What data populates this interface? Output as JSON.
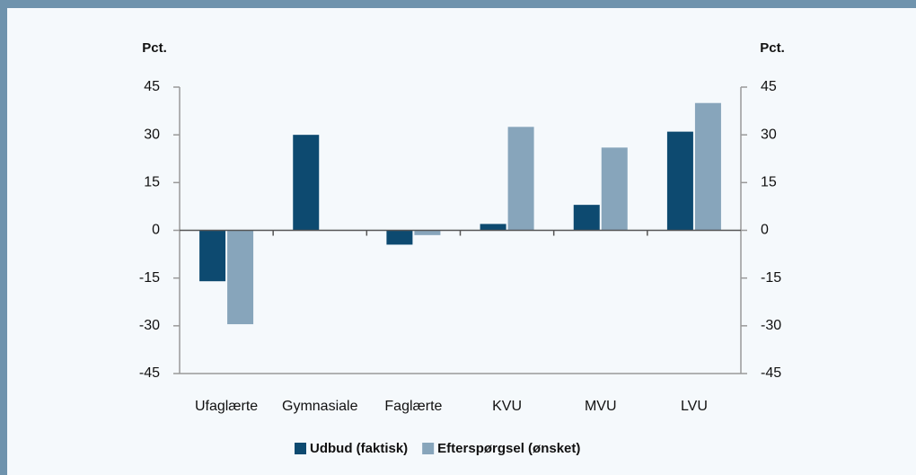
{
  "chart_data": {
    "type": "bar",
    "ylabel": "Pct.",
    "y2label": "Pct.",
    "categories": [
      "Ufaglærte",
      "Gymnasiale",
      "Faglærte",
      "KVU",
      "MVU",
      "LVU"
    ],
    "series": [
      {
        "name": "Udbud (faktisk)",
        "color": "#0d4a70",
        "values": [
          -16,
          30,
          -4.5,
          2,
          8,
          31
        ]
      },
      {
        "name": "Efterspørgsel (ønsket)",
        "color": "#87a5bb",
        "values": [
          -29.5,
          null,
          -1.5,
          32.5,
          26,
          40
        ]
      }
    ],
    "ylim": [
      -45,
      45
    ],
    "yticks": [
      45,
      30,
      15,
      0,
      -15,
      -30,
      -45
    ],
    "y2lim": [
      -45,
      45
    ],
    "y2ticks": [
      45,
      30,
      15,
      0,
      -15,
      -30,
      -45
    ],
    "legend": "bottom"
  }
}
